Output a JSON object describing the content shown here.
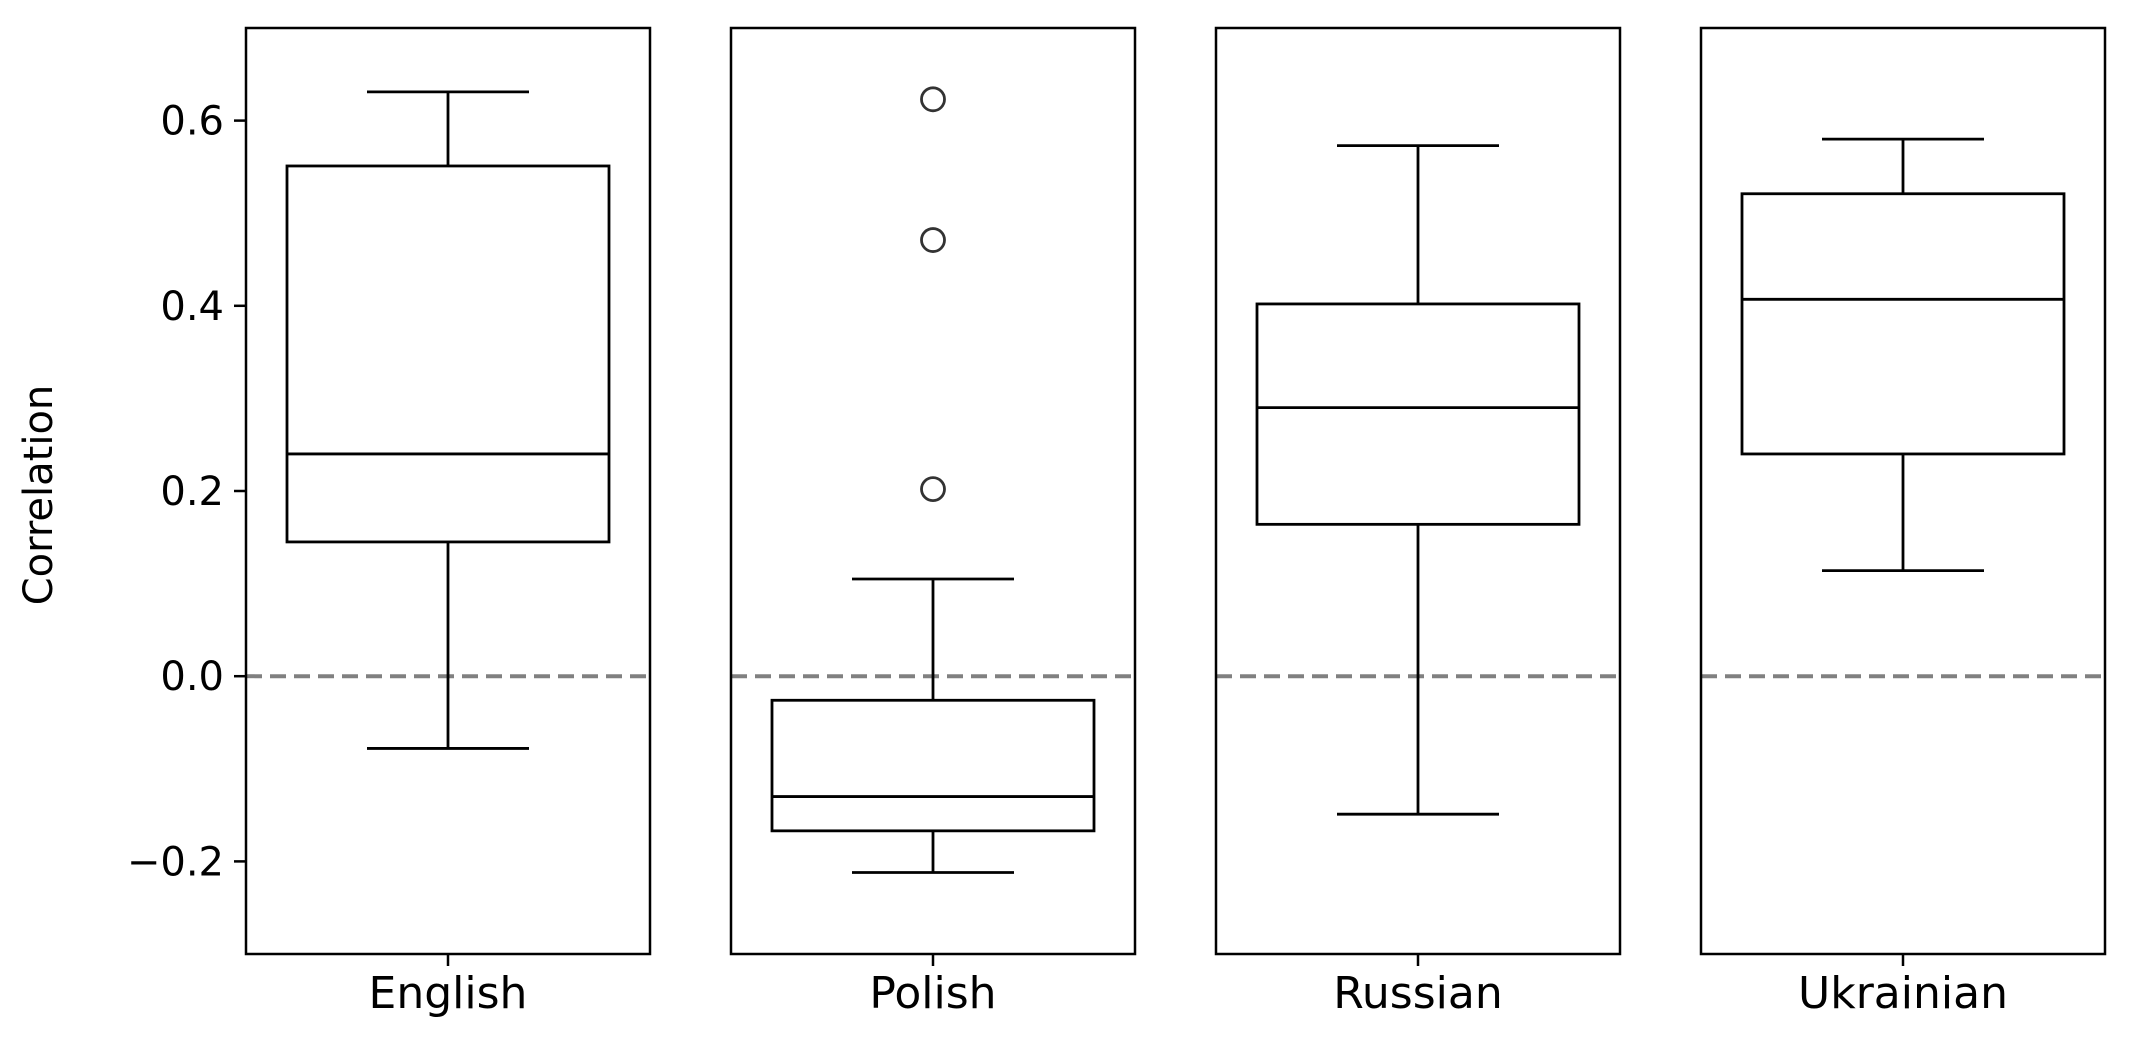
{
  "chart_data": {
    "type": "box",
    "ylabel": "Correlation",
    "ylim": [
      -0.3,
      0.7
    ],
    "yticks": [
      -0.2,
      0.0,
      0.2,
      0.4,
      0.6
    ],
    "ytick_labels": [
      "−0.2",
      "0.0",
      "0.2",
      "0.4",
      "0.6"
    ],
    "reference_line": {
      "y": 0.0,
      "style": "dashed",
      "color": "#808080"
    },
    "grid": false,
    "legend": "none",
    "shared_y_axis": true,
    "panels": [
      {
        "category": "English",
        "whisker_low": -0.078,
        "q1": 0.145,
        "median": 0.24,
        "q3": 0.551,
        "whisker_high": 0.631,
        "outliers": []
      },
      {
        "category": "Polish",
        "whisker_low": -0.212,
        "q1": -0.167,
        "median": -0.13,
        "q3": -0.026,
        "whisker_high": 0.105,
        "outliers": [
          0.202,
          0.471,
          0.623
        ]
      },
      {
        "category": "Russian",
        "whisker_low": -0.149,
        "q1": 0.164,
        "median": 0.29,
        "q3": 0.402,
        "whisker_high": 0.573,
        "outliers": []
      },
      {
        "category": "Ukrainian",
        "whisker_low": 0.114,
        "q1": 0.24,
        "median": 0.407,
        "q3": 0.521,
        "whisker_high": 0.58,
        "outliers": []
      }
    ],
    "colors": {
      "box": "#000000",
      "reference": "#808080",
      "outlier": "#333333"
    }
  }
}
